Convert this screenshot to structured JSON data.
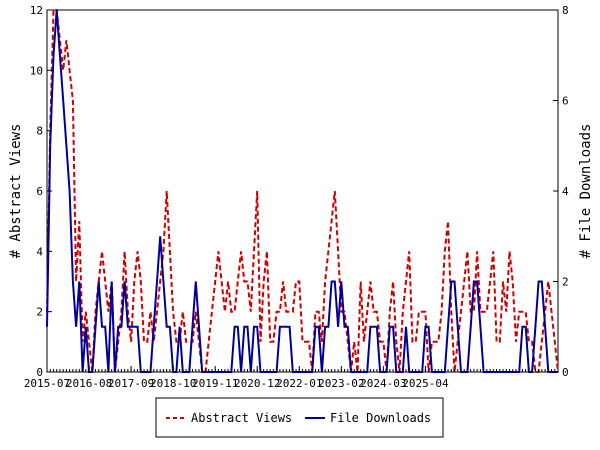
{
  "chart_data": {
    "type": "line",
    "ylabel_left": "# Abstract Views",
    "ylabel_right": "# File Downloads",
    "x_tick_labels": [
      "2015-07",
      "2016-08",
      "2017-09",
      "2018-10",
      "2019-11",
      "2020-12",
      "2022-01",
      "2023-02",
      "2024-03",
      "2025-04"
    ],
    "x_range_months": [
      "2015-07",
      "2025-06"
    ],
    "y_left_range": [
      0,
      12
    ],
    "y_left_ticks": [
      "0",
      "2",
      "4",
      "6",
      "8",
      "10",
      "12"
    ],
    "y_right_range": [
      0,
      8
    ],
    "y_right_ticks": [
      "0",
      "2",
      "4",
      "6",
      "8"
    ],
    "legend_position": "bottom-center",
    "grid": false,
    "series": [
      {
        "name": "Abstract Views",
        "color": "#cc0000",
        "style": "dashed",
        "axis": "left",
        "values": [
          2,
          8,
          12,
          12,
          11,
          10,
          11,
          10,
          9,
          3,
          5,
          1,
          2,
          1,
          0,
          2,
          3,
          4,
          3,
          2,
          3,
          0,
          1,
          2,
          4,
          2,
          1,
          3,
          4,
          3,
          1,
          1,
          2,
          1,
          2,
          3,
          4,
          6,
          4,
          2,
          1,
          1,
          2,
          1,
          1,
          1,
          2,
          1,
          0,
          0,
          1,
          2,
          3,
          4,
          3,
          2,
          3,
          2,
          2,
          3,
          4,
          3,
          3,
          2,
          4,
          6,
          1,
          3,
          4,
          1,
          1,
          2,
          2,
          3,
          2,
          2,
          2,
          3,
          3,
          1,
          1,
          1,
          0,
          2,
          2,
          1,
          3,
          4,
          5,
          6,
          4,
          2,
          2,
          1,
          0,
          1,
          0,
          3,
          1,
          2,
          3,
          2,
          2,
          1,
          1,
          0,
          2,
          3,
          1,
          0,
          2,
          3,
          4,
          1,
          1,
          2,
          2,
          2,
          0,
          1,
          1,
          1,
          2,
          4,
          5,
          2,
          0,
          1,
          2,
          3,
          4,
          2,
          2,
          4,
          2,
          2,
          2,
          3,
          4,
          1,
          1,
          3,
          2,
          4,
          3,
          1,
          2,
          2,
          2,
          1,
          1,
          0,
          0,
          1,
          2,
          3,
          2,
          1,
          0
        ]
      },
      {
        "name": "File Downloads",
        "color": "#000099",
        "style": "solid",
        "axis": "right",
        "values": [
          1,
          5,
          7,
          8,
          7,
          6,
          5,
          4,
          2,
          1,
          2,
          0,
          1,
          0,
          0,
          1,
          2,
          1,
          1,
          0,
          2,
          0,
          1,
          1,
          2,
          1,
          1,
          1,
          1,
          0,
          0,
          0,
          0,
          1,
          2,
          3,
          2,
          1,
          1,
          0,
          0,
          1,
          0,
          0,
          0,
          1,
          2,
          1,
          0,
          0,
          0,
          0,
          0,
          0,
          0,
          0,
          0,
          0,
          1,
          1,
          0,
          1,
          1,
          0,
          1,
          1,
          0,
          0,
          0,
          0,
          0,
          0,
          1,
          1,
          1,
          1,
          0,
          0,
          0,
          0,
          0,
          0,
          0,
          1,
          1,
          0,
          1,
          1,
          2,
          2,
          1,
          2,
          1,
          1,
          0,
          0,
          0,
          0,
          0,
          0,
          1,
          1,
          1,
          0,
          0,
          0,
          1,
          1,
          0,
          0,
          0,
          1,
          0,
          0,
          0,
          0,
          0,
          1,
          1,
          0,
          0,
          0,
          0,
          0,
          1,
          2,
          2,
          1,
          0,
          0,
          0,
          1,
          2,
          2,
          1,
          0,
          0,
          0,
          0,
          0,
          0,
          0,
          0,
          0,
          0,
          0,
          0,
          1,
          1,
          0,
          0,
          1,
          2,
          2,
          1,
          0,
          0,
          0,
          0
        ]
      }
    ]
  }
}
